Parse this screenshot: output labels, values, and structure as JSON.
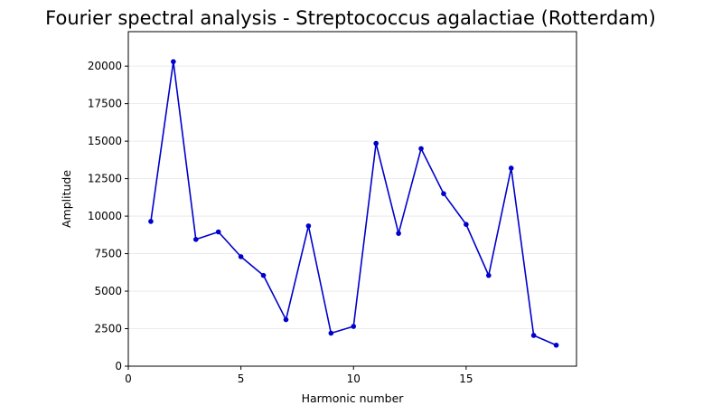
{
  "chart_data": {
    "type": "line",
    "title": "Fourier spectral analysis - Streptococcus agalactiae (Rotterdam)",
    "xlabel": "Harmonic number",
    "ylabel": "Amplitude",
    "xlim": [
      0,
      19.9
    ],
    "ylim": [
      0,
      22300
    ],
    "xticks": [
      0,
      5,
      10,
      15
    ],
    "yticks": [
      0,
      2500,
      5000,
      7500,
      10000,
      12500,
      15000,
      17500,
      20000
    ],
    "grid": "horizontal",
    "series": [
      {
        "color": "#0000cc",
        "marker": "circle",
        "x": [
          1,
          2,
          3,
          4,
          5,
          6,
          7,
          8,
          9,
          10,
          11,
          12,
          13,
          14,
          15,
          16,
          17,
          18,
          19
        ],
        "y": [
          9650,
          20300,
          8450,
          8950,
          7300,
          6050,
          3100,
          9350,
          2200,
          2650,
          14850,
          8850,
          14500,
          11500,
          9450,
          6050,
          13200,
          2050,
          1400
        ]
      }
    ]
  }
}
